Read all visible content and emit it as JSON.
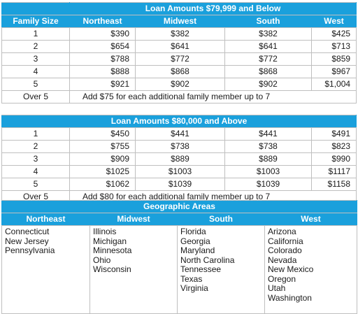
{
  "table1": {
    "title": "Loan Amounts $79,999 and Below",
    "headers": [
      "Family Size",
      "Northeast",
      "Midwest",
      "South",
      "West"
    ],
    "rows": [
      [
        "1",
        "$390",
        "$382",
        "$382",
        "$425"
      ],
      [
        "2",
        "$654",
        "$641",
        "$641",
        "$713"
      ],
      [
        "3",
        "$788",
        "$772",
        "$772",
        "$859"
      ],
      [
        "4",
        "$888",
        "$868",
        "$868",
        "$967"
      ],
      [
        "5",
        "$921",
        "$902",
        "$902",
        "$1,004"
      ]
    ],
    "over_label": "Over 5",
    "over_note": "Add $75 for each additional family member up to 7"
  },
  "table2": {
    "title": "Loan Amounts $80,000 and Above",
    "rows": [
      [
        "1",
        "$450",
        "$441",
        "$441",
        "$491"
      ],
      [
        "2",
        "$755",
        "$738",
        "$738",
        "$823"
      ],
      [
        "3",
        "$909",
        "$889",
        "$889",
        "$990"
      ],
      [
        "4",
        "$1025",
        "$1003",
        "$1003",
        "$1117"
      ],
      [
        "5",
        "$1062",
        "$1039",
        "$1039",
        "$1158"
      ]
    ],
    "over_label": "Over 5",
    "over_note": "Add $80 for each additional family member up to 7"
  },
  "geo": {
    "title": "Geographic Areas",
    "headers": [
      "Northeast",
      "Midwest",
      "South",
      "West"
    ],
    "states": {
      "northeast": [
        "Connecticut",
        "New Jersey",
        "Pennsylvania"
      ],
      "midwest": [
        "Illinois",
        "Michigan",
        "Minnesota",
        "Ohio",
        "Wisconsin"
      ],
      "south": [
        "Florida",
        "Georgia",
        "Maryland",
        "North Carolina",
        "Tennessee",
        "Texas",
        "Virginia"
      ],
      "west": [
        "Arizona",
        "California",
        "Colorado",
        "Nevada",
        "New Mexico",
        "Oregon",
        "Utah",
        "Washington"
      ]
    }
  },
  "colors": {
    "header_bg": "#1aa0dc",
    "header_text": "#ffffff",
    "border": "#bfbfbf"
  }
}
